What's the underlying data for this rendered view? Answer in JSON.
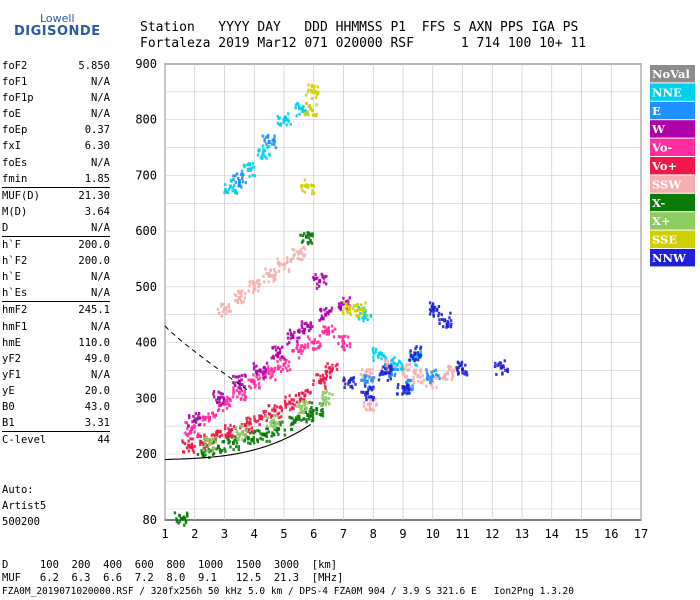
{
  "logo": {
    "line1": "Lowell",
    "line2": "DIGISONDE"
  },
  "header": {
    "row1": "Station   YYYY DAY   DDD HHMMSS P1  FFS S AXN PPS IGA PS",
    "row2": "Fortaleza 2019 Mar12 071 020000 RSF      1 714 100 10+ 11"
  },
  "params": [
    [
      {
        "name": "foF2",
        "value": "5.850"
      },
      {
        "name": "foF1",
        "value": "N/A"
      },
      {
        "name": "foF1p",
        "value": "N/A"
      },
      {
        "name": "foE",
        "value": "N/A"
      },
      {
        "name": "foEp",
        "value": "0.37"
      },
      {
        "name": "fxI",
        "value": "6.30"
      },
      {
        "name": "foEs",
        "value": "N/A"
      },
      {
        "name": "fmin",
        "value": "1.85"
      }
    ],
    [
      {
        "name": "MUF(D)",
        "value": "21.30"
      },
      {
        "name": "M(D)",
        "value": "3.64"
      },
      {
        "name": "D",
        "value": "N/A"
      }
    ],
    [
      {
        "name": "h`F",
        "value": "200.0"
      },
      {
        "name": "h`F2",
        "value": "200.0"
      },
      {
        "name": "h`E",
        "value": "N/A"
      },
      {
        "name": "h`Es",
        "value": "N/A"
      }
    ],
    [
      {
        "name": "hmF2",
        "value": "245.1"
      },
      {
        "name": "hmF1",
        "value": "N/A"
      },
      {
        "name": "hmE",
        "value": "110.0"
      },
      {
        "name": "yF2",
        "value": "49.0"
      },
      {
        "name": "yF1",
        "value": "N/A"
      },
      {
        "name": "yE",
        "value": "20.0"
      },
      {
        "name": "B0",
        "value": "43.0"
      },
      {
        "name": "B1",
        "value": "3.31"
      }
    ],
    [
      {
        "name": "C-level",
        "value": "44"
      }
    ]
  ],
  "auto": {
    "line1": "Auto:",
    "line2": "Artist5",
    "line3": "500200"
  },
  "legend": [
    {
      "label": "NoVal",
      "color": "#8c8c8c"
    },
    {
      "label": "NNE",
      "color": "#00d0f0"
    },
    {
      "label": "E",
      "color": "#1e90ff"
    },
    {
      "label": "W",
      "color": "#b000a8"
    },
    {
      "label": "Vo-",
      "color": "#ff2ea0"
    },
    {
      "label": "Vo+",
      "color": "#f01848"
    },
    {
      "label": "SSW",
      "color": "#f4b0b0"
    },
    {
      "label": "X-",
      "color": "#0a7a0a"
    },
    {
      "label": "X+",
      "color": "#8ccc60"
    },
    {
      "label": "SSE",
      "color": "#d0d000"
    },
    {
      "label": "NNW",
      "color": "#2020d8"
    }
  ],
  "bottom": {
    "d_row": "D     100  200  400  600  800  1000  1500  3000  [km]",
    "muf_row": "MUF   6.2  6.3  6.6  7.2  8.0  9.1   12.5  21.3  [MHz]",
    "footer": "FZA0M_2019071020000.RSF / 320fx256h 50 kHz 5.0 km / DPS-4 FZA0M 904 / 3.9 S 321.6 E   Ion2Png 1.3.20"
  },
  "chart_data": {
    "type": "scatter",
    "xlim": [
      1,
      17
    ],
    "ylim": [
      80,
      900
    ],
    "x_ticks": [
      "1",
      "2",
      "3",
      "4",
      "5",
      "6",
      "7",
      "8",
      "9",
      "10",
      "11",
      "12",
      "13",
      "14",
      "15",
      "16",
      "17"
    ],
    "y_ticks": [
      "80",
      "200",
      "300",
      "400",
      "500",
      "600",
      "700",
      "800",
      "900"
    ],
    "grid": true,
    "legend_position": "right",
    "series": [
      {
        "name": "X-",
        "color": "#0a7a0a",
        "points": [
          [
            1.55,
            82
          ],
          [
            2.3,
            205
          ],
          [
            2.8,
            212
          ],
          [
            3.3,
            220
          ],
          [
            3.8,
            228
          ],
          [
            4.3,
            235
          ],
          [
            4.8,
            245
          ],
          [
            5.3,
            255
          ],
          [
            5.8,
            270
          ],
          [
            5.75,
            590
          ],
          [
            6.1,
            280
          ]
        ]
      },
      {
        "name": "Vo+",
        "color": "#f01848",
        "points": [
          [
            1.8,
            215
          ],
          [
            2.2,
            222
          ],
          [
            2.7,
            232
          ],
          [
            3.2,
            242
          ],
          [
            3.7,
            252
          ],
          [
            4.2,
            265
          ],
          [
            4.7,
            278
          ],
          [
            5.2,
            292
          ],
          [
            5.7,
            305
          ],
          [
            6.2,
            330
          ],
          [
            6.6,
            350
          ]
        ]
      },
      {
        "name": "Vo-",
        "color": "#ff2ea0",
        "points": [
          [
            1.9,
            245
          ],
          [
            2.5,
            265
          ],
          [
            3.0,
            290
          ],
          [
            3.5,
            310
          ],
          [
            4.0,
            330
          ],
          [
            4.5,
            345
          ],
          [
            5.0,
            360
          ],
          [
            5.5,
            385
          ],
          [
            6.0,
            400
          ],
          [
            6.5,
            420
          ],
          [
            7.0,
            400
          ]
        ]
      },
      {
        "name": "W",
        "color": "#b000a8",
        "points": [
          [
            2.0,
            260
          ],
          [
            2.8,
            300
          ],
          [
            3.5,
            330
          ],
          [
            4.2,
            350
          ],
          [
            4.8,
            380
          ],
          [
            5.3,
            410
          ],
          [
            5.8,
            430
          ],
          [
            6.4,
            450
          ],
          [
            7.0,
            470
          ],
          [
            6.2,
            510
          ]
        ]
      },
      {
        "name": "SSW",
        "color": "#f4b0b0",
        "points": [
          [
            3.0,
            460
          ],
          [
            3.5,
            480
          ],
          [
            4.0,
            500
          ],
          [
            4.5,
            520
          ],
          [
            5.0,
            540
          ],
          [
            5.5,
            560
          ],
          [
            7.8,
            340
          ],
          [
            8.5,
            360
          ],
          [
            9.0,
            350
          ],
          [
            9.5,
            340
          ],
          [
            10.0,
            330
          ],
          [
            10.5,
            345
          ],
          [
            7.9,
            290
          ]
        ]
      },
      {
        "name": "NNE",
        "color": "#00d0f0",
        "points": [
          [
            3.2,
            680
          ],
          [
            3.8,
            710
          ],
          [
            4.3,
            740
          ],
          [
            5.0,
            800
          ],
          [
            5.6,
            820
          ],
          [
            7.7,
            450
          ],
          [
            8.2,
            380
          ],
          [
            8.8,
            360
          ],
          [
            9.4,
            370
          ]
        ]
      },
      {
        "name": "E",
        "color": "#1e90ff",
        "points": [
          [
            3.5,
            690
          ],
          [
            4.5,
            760
          ],
          [
            7.8,
            330
          ],
          [
            8.6,
            350
          ],
          [
            9.2,
            320
          ],
          [
            10.0,
            340
          ]
        ]
      },
      {
        "name": "NNW",
        "color": "#2020d8",
        "points": [
          [
            7.2,
            330
          ],
          [
            7.8,
            310
          ],
          [
            8.4,
            345
          ],
          [
            9.0,
            320
          ],
          [
            9.4,
            380
          ],
          [
            10.0,
            460
          ],
          [
            10.4,
            440
          ],
          [
            11.0,
            352
          ],
          [
            12.3,
            355
          ]
        ]
      },
      {
        "name": "X+",
        "color": "#8ccc60",
        "points": [
          [
            2.5,
            218
          ],
          [
            3.6,
            238
          ],
          [
            4.6,
            258
          ],
          [
            5.6,
            285
          ],
          [
            6.4,
            300
          ]
        ]
      },
      {
        "name": "SSE",
        "color": "#d0d000",
        "points": [
          [
            5.9,
            820
          ],
          [
            5.95,
            850
          ],
          [
            5.8,
            680
          ],
          [
            7.2,
            460
          ],
          [
            7.6,
            460
          ]
        ]
      }
    ]
  }
}
